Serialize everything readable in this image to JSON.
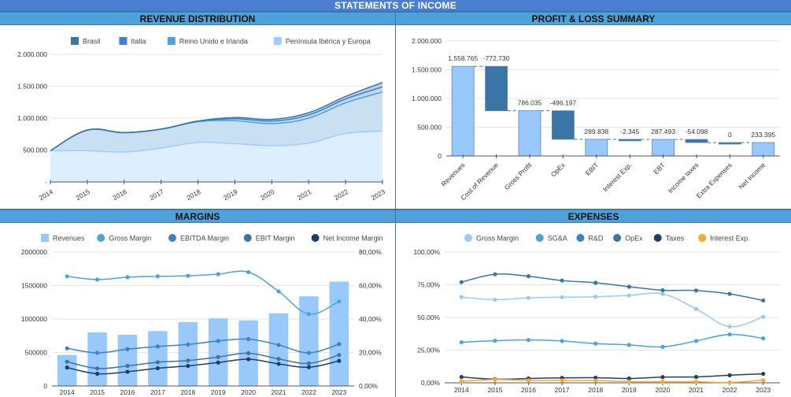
{
  "header": {
    "title": "STATEMENTS OF INCOME"
  },
  "panels": {
    "revenue": {
      "title": "REVENUE DISTRIBUTION"
    },
    "pnl": {
      "title": "PROFIT & LOSS SUMMARY"
    },
    "margins": {
      "title": "MARGINS"
    },
    "expenses": {
      "title": "EXPENSES"
    }
  },
  "colors": {
    "header_bg": "#4a7fd0",
    "panel_title_bg": "#4da3d9",
    "brasil": "#3a75a8",
    "italia": "#3d7fd0",
    "reino": "#4aa3dc",
    "peninsula": "#9fcbff",
    "positive_bar": "#99c9fb",
    "negative_bar": "#3a75a8",
    "gross_margin": "#4aa3dc",
    "ebitda_margin": "#3d7fd0",
    "ebit_margin": "#3a75a8",
    "net_income_margin": "#1e3f6a",
    "exp_gross_margin": "#99c9fb",
    "sga": "#4aa3dc",
    "rd": "#3d7fd0",
    "opex": "#3a75a8",
    "taxes": "#1e3f6a",
    "interest": "#ffa726"
  },
  "chart_data": [
    {
      "id": "revenue-distribution",
      "type": "area",
      "stacked": true,
      "title": "REVENUE DISTRIBUTION",
      "x": [
        "2014",
        "2015",
        "2016",
        "2017",
        "2018",
        "2019",
        "2020",
        "2021",
        "2022",
        "2023"
      ],
      "series": [
        {
          "name": "Península Ibérica y Europa",
          "values": [
            490000,
            490000,
            470000,
            530000,
            620000,
            600000,
            570000,
            610000,
            760000,
            800000
          ]
        },
        {
          "name": "Reino Unido e Irlanda",
          "values": [
            0,
            320000,
            300000,
            295000,
            325000,
            360000,
            345000,
            390000,
            480000,
            610000
          ]
        },
        {
          "name": "Italia",
          "values": [
            0,
            3000,
            3000,
            3000,
            5000,
            30000,
            40000,
            50000,
            60000,
            80000
          ]
        },
        {
          "name": "Brasil",
          "values": [
            0,
            2000,
            2000,
            2000,
            5000,
            20000,
            25000,
            35000,
            40000,
            68765
          ]
        }
      ],
      "legend_order": [
        "Brasil",
        "Italia",
        "Reino Unido e Irlanda",
        "Península Ibérica y Europa"
      ],
      "yticks": [
        "-",
        "500.000",
        "1.000.000",
        "1.500.000",
        "2.000.000"
      ],
      "ylim": [
        0,
        2000000
      ],
      "legend": "top",
      "grid": true
    },
    {
      "id": "profit-loss-summary",
      "type": "bar",
      "subtype": "waterfall",
      "title": "PROFIT & LOSS SUMMARY",
      "categories": [
        "Revenues",
        "Cost of Revenue",
        "Gross Profit",
        "OpEx",
        "EBIT",
        "Interest Exp.",
        "EBT",
        "Income taxes",
        "Extra Expenses",
        "Net Income"
      ],
      "values": [
        1558765,
        -772730,
        786035,
        -496197,
        289838,
        -2345,
        287493,
        -54098,
        0,
        233395
      ],
      "labels": [
        "1.558.765",
        "-772.730",
        "786.035",
        "-496.197",
        "289.838",
        "-2.345",
        "287.493",
        "-54.098",
        "0",
        "233.395"
      ],
      "is_total": [
        true,
        false,
        true,
        false,
        true,
        false,
        true,
        false,
        false,
        true
      ],
      "yticks": [
        "0",
        "500.000",
        "1.000.000",
        "1.500.000",
        "2.000.000"
      ],
      "ylim": [
        0,
        2000000
      ],
      "grid": true
    },
    {
      "id": "margins",
      "type": "bar",
      "combo": "bar+line",
      "title": "MARGINS",
      "categories": [
        "2014",
        "2015",
        "2016",
        "2017",
        "2018",
        "2019",
        "2020",
        "2021",
        "2022",
        "2023"
      ],
      "bar_series": {
        "name": "Revenues",
        "values": [
          465000,
          800000,
          765000,
          820000,
          955000,
          1010000,
          980000,
          1085000,
          1340000,
          1558765
        ],
        "axis": "left"
      },
      "series": [
        {
          "name": "Gross Margin",
          "values": [
            65.5,
            63.6,
            65.0,
            65.5,
            65.8,
            66.8,
            68.0,
            56.5,
            43.0,
            50.5
          ],
          "axis": "right"
        },
        {
          "name": "EBITDA Margin",
          "values": [
            22.5,
            19.8,
            22.0,
            23.6,
            24.8,
            26.9,
            28.0,
            24.5,
            19.8,
            25.0
          ],
          "axis": "right"
        },
        {
          "name": "EBIT Margin",
          "values": [
            14.5,
            10.5,
            12.0,
            14.2,
            15.2,
            17.3,
            19.6,
            16.2,
            13.5,
            18.5
          ],
          "axis": "right"
        },
        {
          "name": "Net Income Margin",
          "values": [
            11.0,
            7.3,
            8.5,
            10.6,
            12.0,
            14.0,
            16.0,
            13.2,
            11.2,
            15.0
          ],
          "axis": "right"
        }
      ],
      "yticks_left": [
        "0",
        "500000",
        "1000000",
        "1500000",
        "2000000"
      ],
      "yticks_right": [
        "0,00%",
        "20,00%",
        "40,00%",
        "60,00%",
        "80,00%"
      ],
      "ylim_left": [
        0,
        2000000
      ],
      "ylim_right": [
        0,
        80
      ],
      "legend": "top",
      "grid": true
    },
    {
      "id": "expenses",
      "type": "line",
      "title": "EXPENSES",
      "x": [
        "2014",
        "2015",
        "2016",
        "2017",
        "2018",
        "2019",
        "2020",
        "2021",
        "2022",
        "2023"
      ],
      "series": [
        {
          "name": "Gross Margin",
          "values": [
            65.5,
            63.6,
            65.0,
            65.5,
            65.8,
            66.8,
            68.0,
            56.5,
            43.0,
            50.5
          ]
        },
        {
          "name": "SG&A",
          "values": [
            31.0,
            32.2,
            32.8,
            32.0,
            30.0,
            29.0,
            27.5,
            32.0,
            37.0,
            34.0
          ]
        },
        {
          "name": "R&D",
          "values": []
        },
        {
          "name": "OpEx",
          "values": [
            77.0,
            83.0,
            81.5,
            78.2,
            76.5,
            73.5,
            70.8,
            70.6,
            68.0,
            63.0
          ]
        },
        {
          "name": "Taxes",
          "values": [
            4.5,
            2.8,
            3.3,
            3.8,
            3.9,
            3.3,
            4.4,
            4.5,
            5.8,
            6.9
          ]
        },
        {
          "name": "Interest Exp.",
          "values": [
            1.2,
            2.5,
            1.9,
            1.8,
            1.7,
            1.0,
            0.9,
            0.8,
            0.3,
            2.0
          ]
        }
      ],
      "yticks": [
        "0,00%",
        "25,00%",
        "50,00%",
        "75,00%",
        "100,00%"
      ],
      "ylim": [
        0,
        100
      ],
      "legend": "top",
      "grid": true
    }
  ]
}
